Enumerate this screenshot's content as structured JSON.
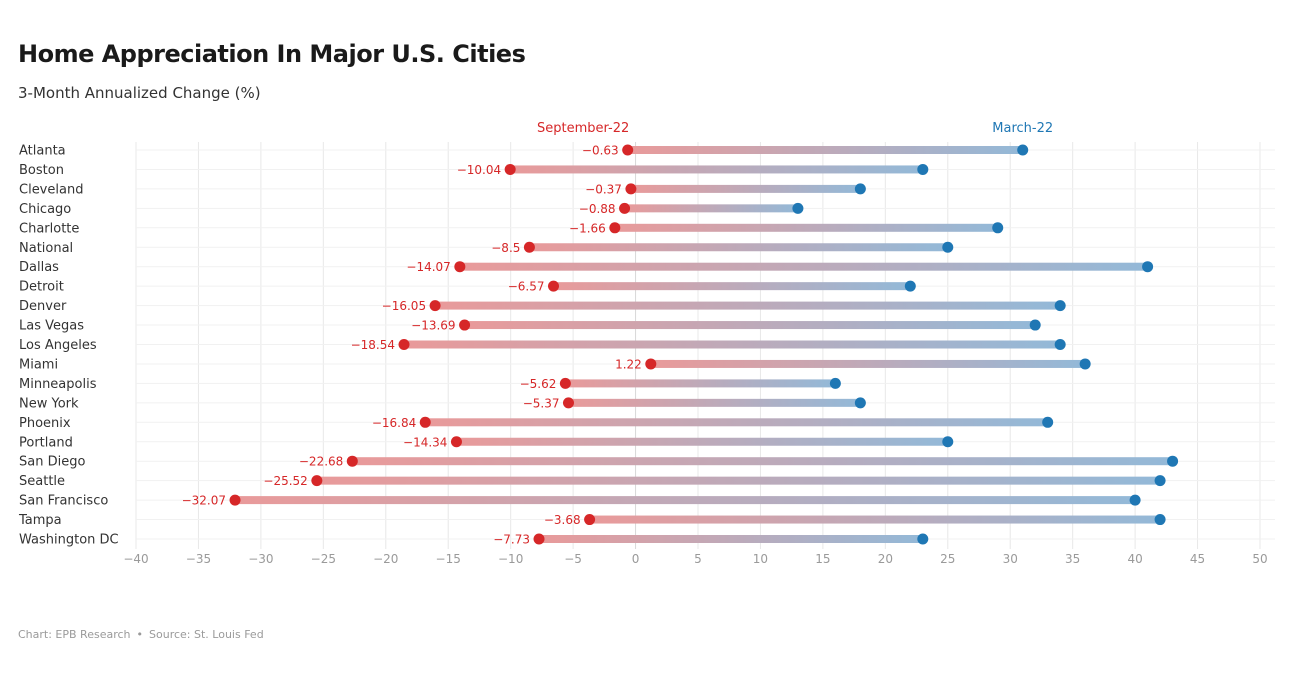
{
  "title": "Home Appreciation In Major U.S. Cities",
  "subtitle": "3-Month Annualized Change (%)",
  "footer": {
    "chart_credit": "Chart: EPB Research",
    "separator": "•",
    "source": "Source: St. Louis Fed"
  },
  "colors": {
    "sep": "#d62728",
    "mar": "#1f77b4",
    "sep_bar": "#e99a9a",
    "mar_bar": "#93b9d8",
    "grid": "#e8e8e8",
    "tick": "#9a9a9a",
    "label": "#333333"
  },
  "chart_data": {
    "type": "dumbbell",
    "series": [
      {
        "name": "September-22",
        "color": "#d62728"
      },
      {
        "name": "March-22",
        "color": "#1f77b4"
      }
    ],
    "categories": [
      "Atlanta",
      "Boston",
      "Cleveland",
      "Chicago",
      "Charlotte",
      "National",
      "Dallas",
      "Detroit",
      "Denver",
      "Las Vegas",
      "Los Angeles",
      "Miami",
      "Minneapolis",
      "New York",
      "Phoenix",
      "Portland",
      "San Diego",
      "Seattle",
      "San Francisco",
      "Tampa",
      "Washington DC"
    ],
    "september_22": [
      -0.63,
      -10.04,
      -0.37,
      -0.88,
      -1.66,
      -8.5,
      -14.07,
      -6.57,
      -16.05,
      -13.69,
      -18.54,
      1.22,
      -5.62,
      -5.37,
      -16.84,
      -14.34,
      -22.68,
      -25.52,
      -32.07,
      -3.68,
      -7.73
    ],
    "march_22": [
      31,
      23,
      18,
      13,
      29,
      25,
      41,
      22,
      34,
      32,
      34,
      36,
      16,
      18,
      33,
      25,
      43,
      42,
      40,
      42,
      23
    ],
    "xlim": [
      -40,
      50
    ],
    "xticks": [
      -40,
      -35,
      -30,
      -25,
      -20,
      -15,
      -10,
      -5,
      0,
      5,
      10,
      15,
      20,
      25,
      30,
      35,
      40,
      45,
      50
    ],
    "grid": true
  }
}
